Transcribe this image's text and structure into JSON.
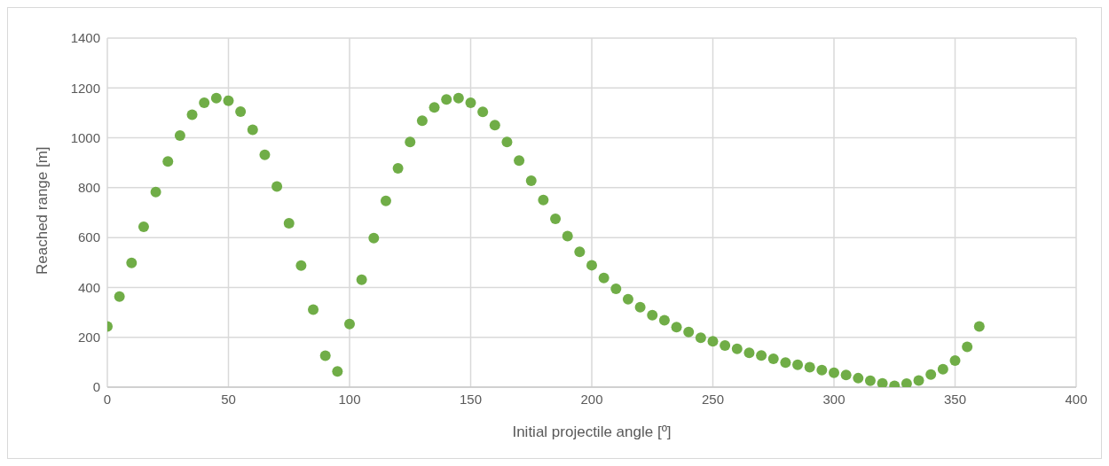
{
  "chart_data": {
    "type": "scatter",
    "xlabel": "Initial projectile angle [º]",
    "ylabel": "Reached range [m]",
    "x": [
      0,
      5,
      10,
      15,
      20,
      25,
      30,
      35,
      40,
      45,
      50,
      55,
      60,
      65,
      70,
      75,
      80,
      85,
      90,
      95,
      100,
      105,
      110,
      115,
      120,
      125,
      130,
      135,
      140,
      145,
      150,
      155,
      160,
      165,
      170,
      175,
      180,
      185,
      190,
      195,
      200,
      205,
      210,
      215,
      220,
      225,
      230,
      235,
      240,
      245,
      250,
      255,
      260,
      265,
      270,
      275,
      280,
      285,
      290,
      295,
      300,
      305,
      310,
      315,
      320,
      325,
      330,
      335,
      340,
      345,
      350,
      355,
      360
    ],
    "series": [
      {
        "color": "#70ad47",
        "values": [
          243,
          363,
          498,
          643,
          783,
          905,
          1009,
          1093,
          1141,
          1159,
          1149,
          1105,
          1032,
          932,
          805,
          657,
          488,
          311,
          126,
          63,
          253,
          431,
          598,
          747,
          878,
          983,
          1069,
          1122,
          1154,
          1159,
          1141,
          1104,
          1051,
          983,
          909,
          828,
          751,
          675,
          606,
          543,
          489,
          438,
          394,
          353,
          321,
          289,
          268,
          241,
          221,
          198,
          184,
          167,
          154,
          138,
          127,
          114,
          99,
          90,
          80,
          68,
          58,
          49,
          36,
          26,
          15,
          5,
          14,
          27,
          51,
          72,
          107,
          162,
          243
        ]
      }
    ],
    "xlim": [
      0,
      400
    ],
    "xticks": [
      0,
      50,
      100,
      150,
      200,
      250,
      300,
      350,
      400
    ],
    "ylim": [
      0,
      1400
    ],
    "yticks": [
      0,
      200,
      400,
      600,
      800,
      1000,
      1200,
      1400
    ],
    "grid": true,
    "marker": "circle",
    "legend": false
  }
}
